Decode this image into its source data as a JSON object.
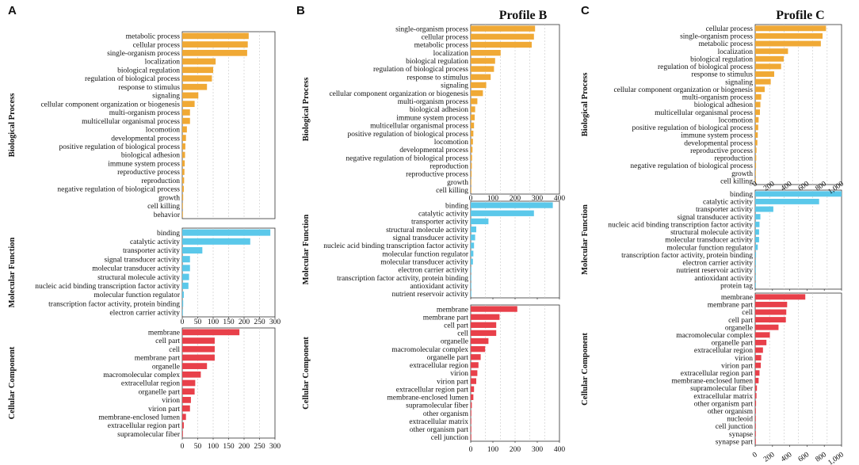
{
  "colors": {
    "biological_process": "#f0a935",
    "molecular_function": "#5bc8ea",
    "cellular_component": "#e8404a"
  },
  "chart_data": [
    {
      "type": "bar",
      "orientation": "horizontal",
      "panel_letter": "A",
      "title": "",
      "sections": [
        {
          "name": "Biological Process",
          "color_key": "biological_process",
          "xlim": [
            0,
            300
          ],
          "ticks": [],
          "categories": [
            "metabolic process",
            "cellular process",
            "single-organism process",
            "localization",
            "biological regulation",
            "regulation of biological process",
            "response to stimulus",
            "signaling",
            "cellular component organization or biogenesis",
            "multi-organism process",
            "multicellular organismal process",
            "locomotion",
            "developmental process",
            "positive regulation of biological process",
            "biological adhesion",
            "immune system process",
            "reproductive process",
            "reproduction",
            "negative regulation of biological process",
            "growth",
            "cell killing",
            "behavior"
          ],
          "values": [
            215,
            212,
            210,
            108,
            100,
            96,
            80,
            52,
            40,
            25,
            25,
            15,
            12,
            10,
            9,
            8,
            7,
            6,
            5,
            3,
            2,
            1
          ]
        },
        {
          "name": "Molecular Function",
          "color_key": "molecular_function",
          "xlim": [
            0,
            300
          ],
          "ticks": [
            "0",
            "50",
            "100",
            "150",
            "200",
            "250",
            "300"
          ],
          "categories": [
            "binding",
            "catalytic activity",
            "transporter activity",
            "signal transducer activity",
            "molecular transducer activity",
            "structural molecule activity",
            "nucleic acid binding transcription factor activity",
            "molecular function regulator",
            "transcription factor activity, protein binding",
            "electron carrier activity"
          ],
          "values": [
            285,
            220,
            65,
            25,
            25,
            22,
            20,
            5,
            3,
            2
          ]
        },
        {
          "name": "Cellular Component",
          "color_key": "cellular_component",
          "xlim": [
            0,
            300
          ],
          "ticks": [
            "0",
            "50",
            "100",
            "150",
            "200",
            "250",
            "300"
          ],
          "categories": [
            "membrane",
            "cell part",
            "cell",
            "membrane part",
            "organelle",
            "macromolecular complex",
            "extracellular region",
            "organelle part",
            "virion",
            "virion part",
            "membrane-enclosed lumen",
            "extracellular region part",
            "supramolecular fiber"
          ],
          "values": [
            185,
            105,
            105,
            105,
            80,
            60,
            42,
            40,
            28,
            25,
            12,
            5,
            2
          ]
        }
      ]
    },
    {
      "type": "bar",
      "orientation": "horizontal",
      "panel_letter": "B",
      "title": "Profile B",
      "sections": [
        {
          "name": "Biological Process",
          "color_key": "biological_process",
          "xlim": [
            0,
            400
          ],
          "ticks": [],
          "categories": [
            "single-organism process",
            "cellular process",
            "metabolic process",
            "localization",
            "biological regulation",
            "regulation of biological process",
            "response to stimulus",
            "signaling",
            "cellular component organization or biogenesis",
            "multi-organism process",
            "biological adhesion",
            "immune system process",
            "multicellular organismal process",
            "positive regulation of biological process",
            "locomotion",
            "developmental process",
            "negative regulation of biological process",
            "reproduction",
            "reproductive process",
            "growth",
            "cell killing"
          ],
          "values": [
            290,
            285,
            275,
            135,
            110,
            105,
            90,
            70,
            55,
            30,
            20,
            18,
            15,
            12,
            10,
            8,
            6,
            5,
            4,
            2,
            1
          ]
        },
        {
          "name": "Molecular Function",
          "color_key": "molecular_function",
          "xlim": [
            0,
            400
          ],
          "ticks": [
            "0",
            "100",
            "200",
            "300",
            "400"
          ],
          "categories": [
            "binding",
            "catalytic activity",
            "transporter activity",
            "structural molecule activity",
            "signal transducer activity",
            "nucleic acid binding transcription factor activity",
            "molecular function regulator",
            "molecular transducer activity",
            "electron carrier activity",
            "transcription factor activity, protein binding",
            "antioxidant activity",
            "nutrient reservoir activity"
          ],
          "values": [
            370,
            285,
            80,
            25,
            20,
            15,
            12,
            10,
            3,
            2,
            2,
            1
          ]
        },
        {
          "name": "Cellular Component",
          "color_key": "cellular_component",
          "xlim": [
            0,
            400
          ],
          "ticks": [
            "0",
            "100",
            "200",
            "300",
            "400"
          ],
          "categories": [
            "membrane",
            "membrane part",
            "cell part",
            "cell",
            "organelle",
            "macromolecular complex",
            "organelle part",
            "extracellular region",
            "virion",
            "virion part",
            "extracellular region part",
            "membrane-enclosed lumen",
            "supramolecular fiber",
            "other organism",
            "extracellular matrix",
            "other organism part",
            "cell junction"
          ],
          "values": [
            210,
            130,
            115,
            115,
            80,
            65,
            45,
            35,
            30,
            25,
            15,
            12,
            5,
            3,
            2,
            2,
            1
          ]
        }
      ]
    },
    {
      "type": "bar",
      "orientation": "horizontal",
      "panel_letter": "C",
      "title": "Profile C",
      "sections": [
        {
          "name": "Biological Process",
          "color_key": "biological_process",
          "xlim": [
            0,
            1000
          ],
          "ticks": [],
          "categories": [
            "cellular process",
            "single-organism process",
            "metabolic process",
            "localization",
            "biological regulation",
            "regulation of biological process",
            "response to stimulus",
            "signaling",
            "cellular component organization or biogenesis",
            "multi-organism process",
            "biological adhesion",
            "multicellular organismal process",
            "locomotion",
            "positive regulation of biological process",
            "immune system process",
            "developmental process",
            "reproductive process",
            "reproduction",
            "negative regulation of biological process",
            "growth",
            "cell killing"
          ],
          "values": [
            820,
            780,
            760,
            380,
            330,
            300,
            220,
            180,
            110,
            70,
            60,
            55,
            40,
            35,
            30,
            25,
            15,
            12,
            10,
            5,
            2
          ]
        },
        {
          "name": "Molecular Function",
          "color_key": "molecular_function",
          "xlim": [
            0,
            1000
          ],
          "ticks": [
            "0",
            "200",
            "400",
            "600",
            "800",
            "1,000"
          ],
          "categories": [
            "binding",
            "catalytic activity",
            "transporter activity",
            "signal transducer activity",
            "nucleic acid binding transcription factor activity",
            "structural molecule activity",
            "molecular transducer activity",
            "molecular function regulator",
            "transcription factor activity, protein binding",
            "electron carrier activity",
            "nutrient reservoir activity",
            "antioxidant activity",
            "protein tag"
          ],
          "values": [
            1000,
            740,
            210,
            60,
            50,
            45,
            45,
            30,
            10,
            8,
            5,
            4,
            2
          ]
        },
        {
          "name": "Cellular Component",
          "color_key": "cellular_component",
          "xlim": [
            0,
            1000
          ],
          "ticks": [
            "0",
            "200",
            "400",
            "600",
            "800",
            "1,000"
          ],
          "categories": [
            "membrane",
            "membrane part",
            "cell",
            "cell part",
            "organelle",
            "macromolecular complex",
            "organelle part",
            "extracellular region",
            "virion",
            "virion part",
            "extracellular region part",
            "membrane-enclosed lumen",
            "supramolecular fiber",
            "extracellular matrix",
            "other organism part",
            "other organism",
            "nucleoid",
            "cell junction",
            "synapse",
            "synapse part"
          ],
          "values": [
            580,
            370,
            360,
            355,
            270,
            170,
            130,
            90,
            70,
            65,
            50,
            40,
            20,
            15,
            10,
            8,
            5,
            4,
            2,
            1
          ]
        }
      ]
    }
  ]
}
